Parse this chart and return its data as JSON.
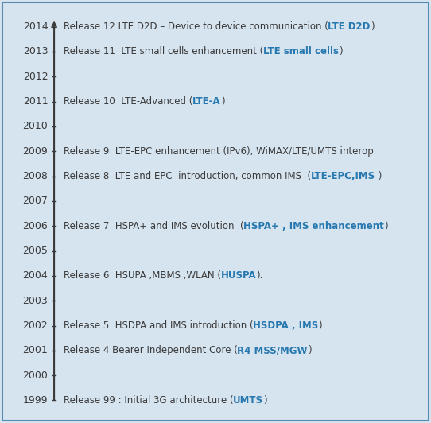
{
  "background_color": "#d6e4f0",
  "border_color": "#5a8ab0",
  "years": [
    2014,
    2013,
    2012,
    2011,
    2010,
    2009,
    2008,
    2007,
    2006,
    2005,
    2004,
    2003,
    2002,
    2001,
    2000,
    1999
  ],
  "entries": [
    {
      "year": 2014,
      "text_black": "Release 12 LTE D2D – Device to device communication (",
      "text_blue": "LTE D2D",
      "text_black2": ")"
    },
    {
      "year": 2013,
      "text_black": "Release 11  LTE small cells enhancement (",
      "text_blue": "LTE small cells",
      "text_black2": ")"
    },
    {
      "year": 2012,
      "text_black": "",
      "text_blue": "",
      "text_black2": ""
    },
    {
      "year": 2011,
      "text_black": "Release 10  LTE-Advanced (",
      "text_blue": "LTE-A",
      "text_black2": ")"
    },
    {
      "year": 2010,
      "text_black": "",
      "text_blue": "",
      "text_black2": ""
    },
    {
      "year": 2009,
      "text_black": "Release 9  LTE-EPC enhancement (IPv6), WiMAX/LTE/UMTS interop",
      "text_blue": "",
      "text_black2": ""
    },
    {
      "year": 2008,
      "text_black": "Release 8  LTE and EPC  introduction, common IMS  (",
      "text_blue": "LTE-EPC,IMS",
      "text_black2": " )"
    },
    {
      "year": 2007,
      "text_black": "",
      "text_blue": "",
      "text_black2": ""
    },
    {
      "year": 2006,
      "text_black": "Release 7  HSPA+ and IMS evolution  (",
      "text_blue": "HSPA+ , IMS enhancement",
      "text_black2": ")"
    },
    {
      "year": 2005,
      "text_black": "",
      "text_blue": "",
      "text_black2": ""
    },
    {
      "year": 2004,
      "text_black": "Release 6  HSUPA ,MBMS ,WLAN (",
      "text_blue": "HUSPA",
      "text_black2": ")."
    },
    {
      "year": 2003,
      "text_black": "",
      "text_blue": "",
      "text_black2": ""
    },
    {
      "year": 2002,
      "text_black": "Release 5  HSDPA and IMS introduction (",
      "text_blue": "HSDPA , IMS",
      "text_black2": ")"
    },
    {
      "year": 2001,
      "text_black": "Release 4 Bearer Independent Core (",
      "text_blue": "R4 MSS/MGW",
      "text_black2": ")"
    },
    {
      "year": 2000,
      "text_black": "",
      "text_blue": "",
      "text_black2": ""
    },
    {
      "year": 1999,
      "text_black": "Release 99 : Initial 3G architecture (",
      "text_blue": "UMTS",
      "text_black2": ")"
    }
  ],
  "text_color_black": "#3a3a3a",
  "text_color_blue": "#2878b0",
  "year_color": "#3a3a3a",
  "axis_color": "#3a3a3a",
  "font_size": 8.5,
  "year_font_size": 9.0,
  "fig_width": 5.42,
  "fig_height": 5.32,
  "dpi": 100
}
